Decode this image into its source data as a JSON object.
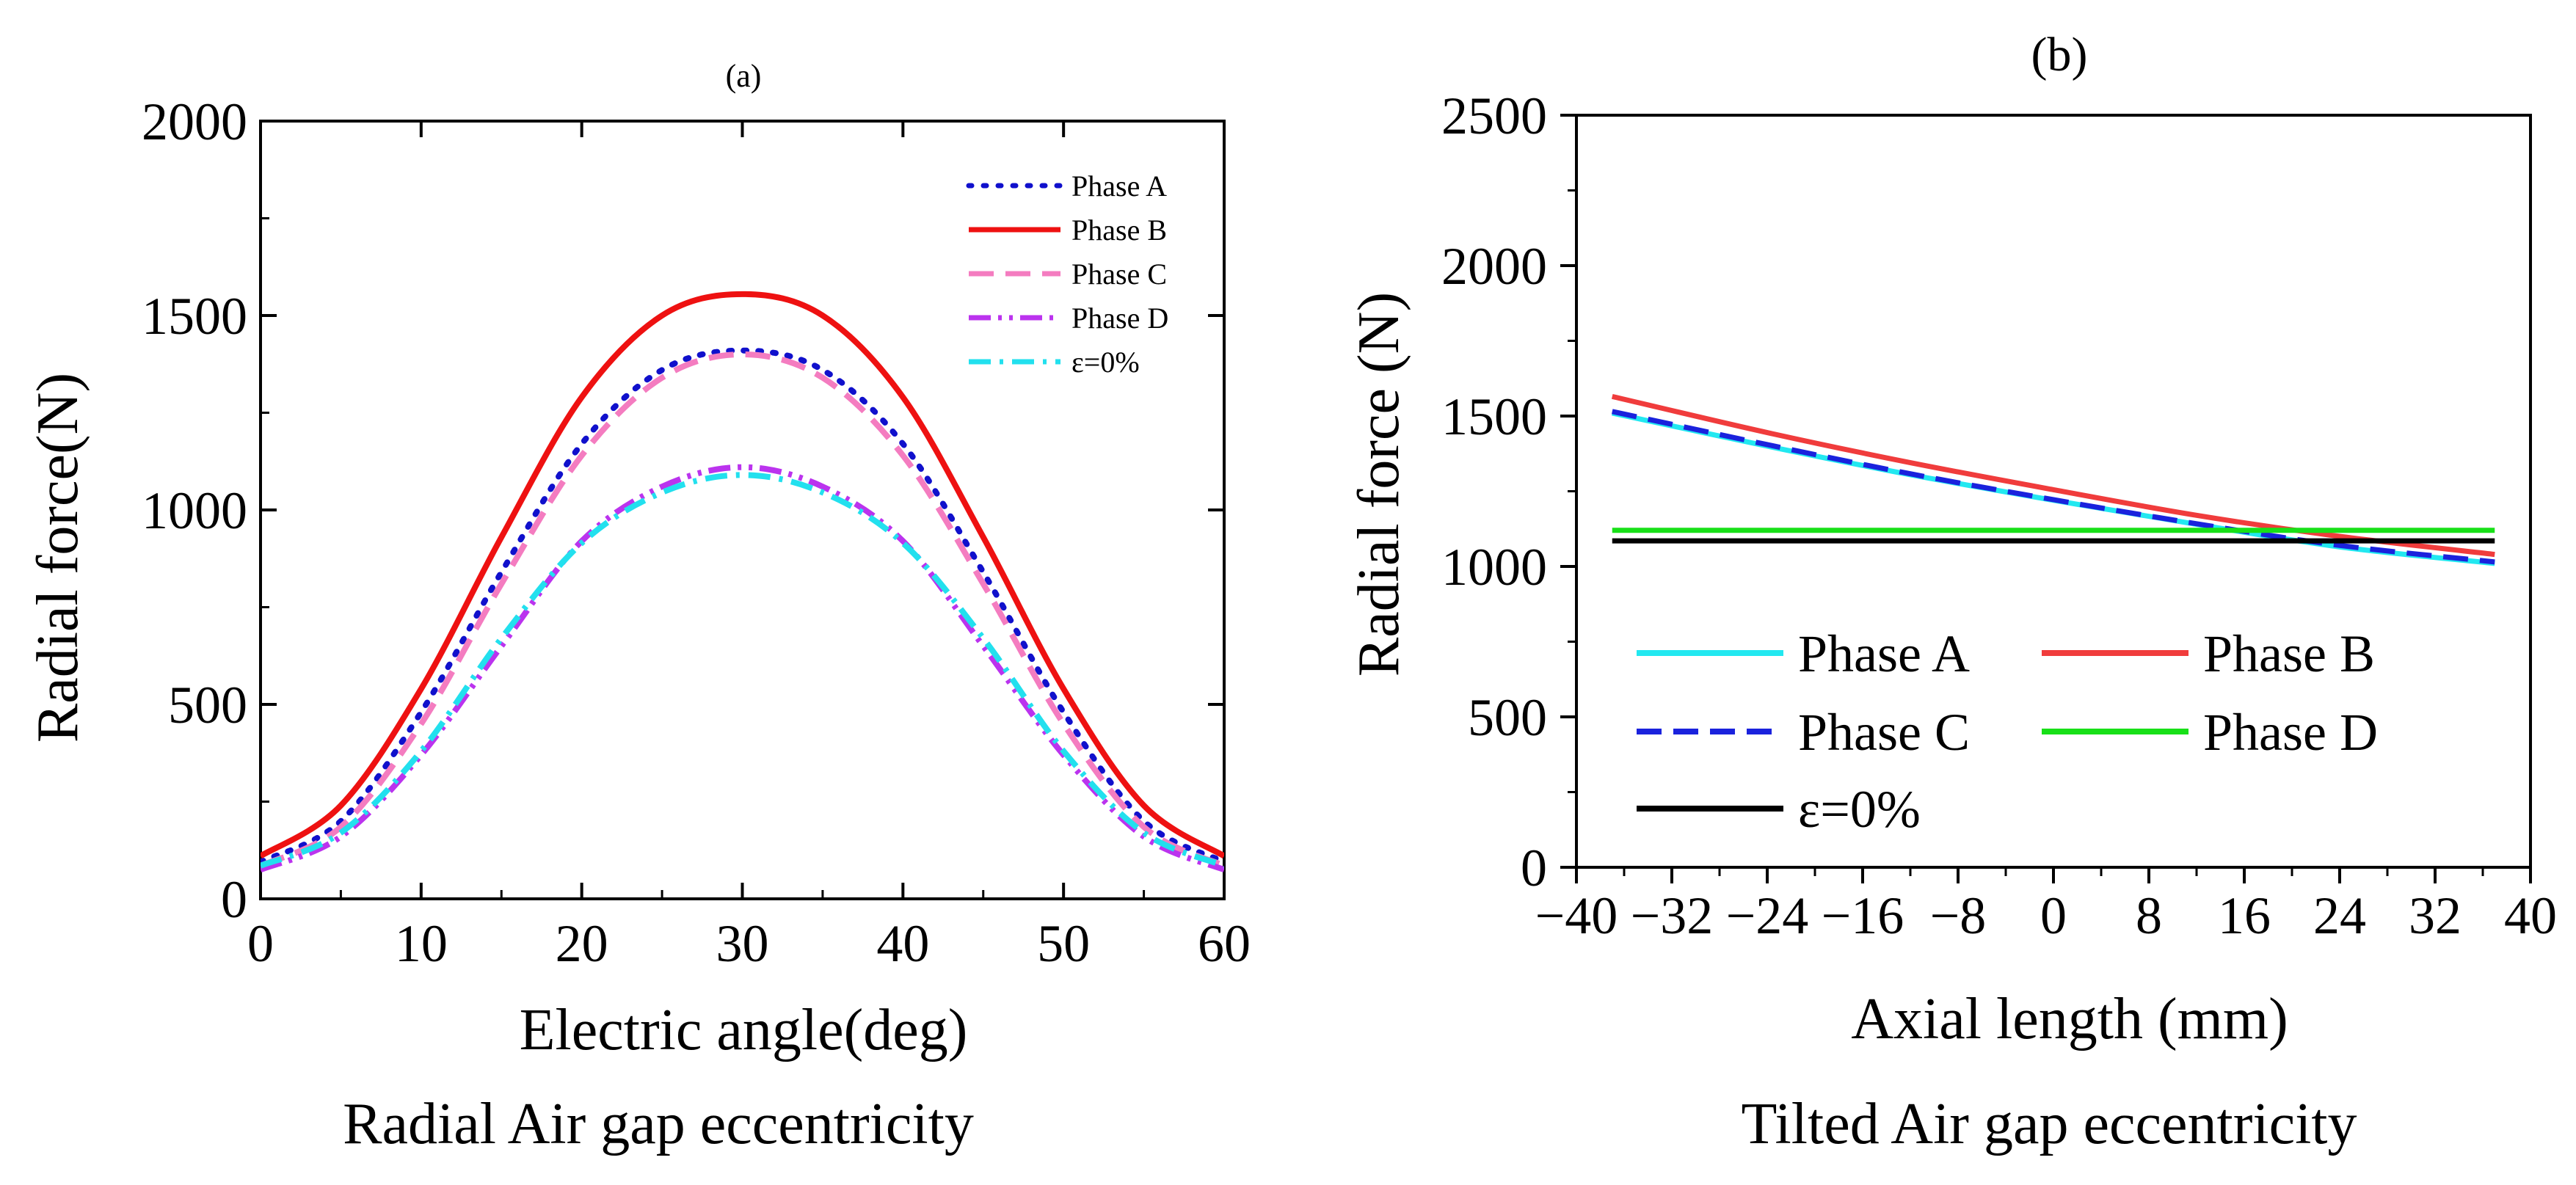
{
  "chart_data": [
    {
      "type": "line",
      "panel_label": "(a)",
      "title": "",
      "caption": "Radial Air gap eccentricity",
      "xlabel": "Electric angle(deg)",
      "ylabel": "Radial force(N)",
      "xlim": [
        0,
        60
      ],
      "ylim": [
        0,
        2000
      ],
      "xticks": [
        0,
        10,
        20,
        30,
        40,
        50,
        60
      ],
      "yticks": [
        0,
        500,
        1000,
        1500,
        2000
      ],
      "grid": false,
      "legend_position": "top-right",
      "x": [
        0,
        5,
        10,
        15,
        20,
        25,
        30,
        35,
        40,
        45,
        50,
        55,
        60
      ],
      "series": [
        {
          "name": "Phase A",
          "color": "#1010cc",
          "style": "dotted",
          "values": [
            95,
            200,
            480,
            840,
            1170,
            1360,
            1410,
            1360,
            1170,
            840,
            480,
            200,
            95
          ]
        },
        {
          "name": "Phase B",
          "color": "#ee1111",
          "style": "solid",
          "values": [
            110,
            240,
            540,
            930,
            1290,
            1500,
            1555,
            1500,
            1290,
            930,
            540,
            240,
            110
          ]
        },
        {
          "name": "Phase C",
          "color": "#f47cc0",
          "style": "dashed",
          "values": [
            85,
            185,
            450,
            810,
            1140,
            1340,
            1400,
            1340,
            1140,
            810,
            450,
            185,
            85
          ]
        },
        {
          "name": "Phase D",
          "color": "#bb33ee",
          "style": "dashdotdot",
          "values": [
            75,
            160,
            370,
            650,
            920,
            1060,
            1110,
            1060,
            920,
            650,
            370,
            160,
            75
          ]
        },
        {
          "name": "ε=0%",
          "color": "#22e0ee",
          "style": "dashdot",
          "values": [
            85,
            170,
            380,
            670,
            915,
            1045,
            1090,
            1045,
            915,
            670,
            380,
            170,
            85
          ]
        }
      ]
    },
    {
      "type": "line",
      "panel_label": "(b)",
      "title": "",
      "caption": "Tilted Air gap eccentricity",
      "xlabel": "Axial length (mm)",
      "ylabel": "Radial force (N)",
      "xlim": [
        -40,
        40
      ],
      "ylim": [
        0,
        2500
      ],
      "xticks": [
        -40,
        -32,
        -24,
        -16,
        -8,
        0,
        8,
        16,
        24,
        32,
        40
      ],
      "xtick_labels": [
        "−40",
        "−32",
        "−24",
        "−16",
        "−8",
        "0",
        "8",
        "16",
        "24",
        "32",
        "40"
      ],
      "yticks": [
        0,
        500,
        1000,
        1500,
        2000,
        2500
      ],
      "grid": false,
      "legend_position": "bottom-left",
      "x": [
        -37,
        -24,
        -12,
        0,
        12,
        24,
        37
      ],
      "series": [
        {
          "name": "Phase A",
          "color": "#22e8f0",
          "style": "solid",
          "values": [
            1510,
            1400,
            1305,
            1220,
            1140,
            1065,
            1010
          ]
        },
        {
          "name": "Phase B",
          "color": "#f03c3c",
          "style": "solid",
          "values": [
            1565,
            1445,
            1345,
            1255,
            1170,
            1100,
            1040
          ]
        },
        {
          "name": "Phase C",
          "color": "#1a22dd",
          "style": "dashed",
          "values": [
            1515,
            1405,
            1308,
            1222,
            1142,
            1070,
            1015
          ]
        },
        {
          "name": "Phase D",
          "color": "#18e018",
          "style": "solid",
          "values": [
            1120,
            1120,
            1120,
            1120,
            1120,
            1120,
            1120
          ]
        },
        {
          "name": "ε=0%",
          "color": "#000000",
          "style": "solid",
          "values": [
            1085,
            1085,
            1085,
            1085,
            1085,
            1085,
            1085
          ]
        }
      ]
    }
  ]
}
